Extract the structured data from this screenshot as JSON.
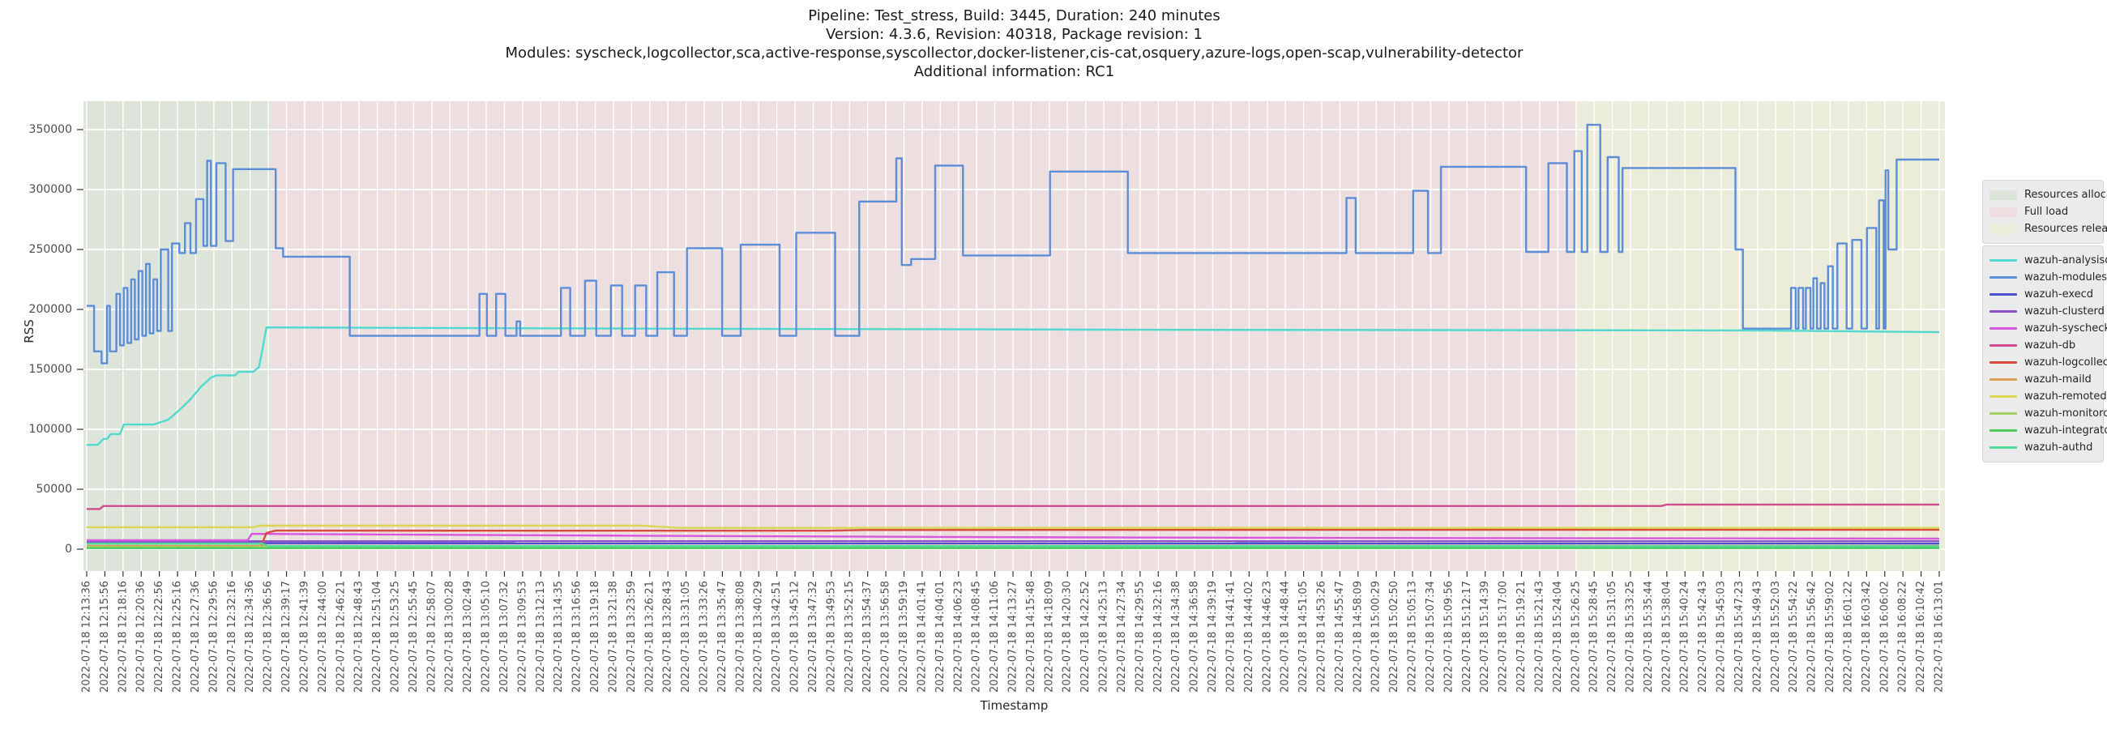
{
  "title": {
    "line1": "Pipeline: Test_stress, Build: 3445, Duration: 240 minutes",
    "line2": "Version: 4.3.6, Revision: 40318, Package revision: 1",
    "line3": "Modules: syscheck,logcollector,sca,active-response,syscollector,docker-listener,cis-cat,osquery,azure-logs,open-scap,vulnerability-detector",
    "line4": "Additional information: RC1"
  },
  "chart_data": {
    "type": "line",
    "title": "Pipeline: Test_stress, Build: 3445, Duration: 240 minutes",
    "xlabel": "Timestamp",
    "ylabel": "RSS",
    "ylim": [
      0,
      373000
    ],
    "grid": true,
    "legend_position": "right-outside",
    "y_ticks": [
      0,
      50000,
      100000,
      150000,
      200000,
      250000,
      300000,
      350000
    ],
    "x_note": "series points are [fraction-of-x-axis 0..1, RSS value]; fraction 0 = first tick, 1 = last tick",
    "x_tick_labels": [
      "2022-07-18 12:13:36",
      "2022-07-18 12:15:56",
      "2022-07-18 12:18:16",
      "2022-07-18 12:20:36",
      "2022-07-18 12:22:56",
      "2022-07-18 12:25:16",
      "2022-07-18 12:27:36",
      "2022-07-18 12:29:56",
      "2022-07-18 12:32:16",
      "2022-07-18 12:34:36",
      "2022-07-18 12:36:56",
      "2022-07-18 12:39:17",
      "2022-07-18 12:41:39",
      "2022-07-18 12:44:00",
      "2022-07-18 12:46:21",
      "2022-07-18 12:48:43",
      "2022-07-18 12:51:04",
      "2022-07-18 12:53:25",
      "2022-07-18 12:55:45",
      "2022-07-18 12:58:07",
      "2022-07-18 13:00:28",
      "2022-07-18 13:02:49",
      "2022-07-18 13:05:10",
      "2022-07-18 13:07:32",
      "2022-07-18 13:09:53",
      "2022-07-18 13:12:13",
      "2022-07-18 13:14:35",
      "2022-07-18 13:16:56",
      "2022-07-18 13:19:18",
      "2022-07-18 13:21:38",
      "2022-07-18 13:23:59",
      "2022-07-18 13:26:21",
      "2022-07-18 13:28:43",
      "2022-07-18 13:31:05",
      "2022-07-18 13:33:26",
      "2022-07-18 13:35:47",
      "2022-07-18 13:38:08",
      "2022-07-18 13:40:29",
      "2022-07-18 13:42:51",
      "2022-07-18 13:45:12",
      "2022-07-18 13:47:32",
      "2022-07-18 13:49:53",
      "2022-07-18 13:52:15",
      "2022-07-18 13:54:37",
      "2022-07-18 13:56:58",
      "2022-07-18 13:59:19",
      "2022-07-18 14:01:41",
      "2022-07-18 14:04:01",
      "2022-07-18 14:06:23",
      "2022-07-18 14:08:45",
      "2022-07-18 14:11:06",
      "2022-07-18 14:13:27",
      "2022-07-18 14:15:48",
      "2022-07-18 14:18:09",
      "2022-07-18 14:20:30",
      "2022-07-18 14:22:52",
      "2022-07-18 14:25:13",
      "2022-07-18 14:27:34",
      "2022-07-18 14:29:55",
      "2022-07-18 14:32:16",
      "2022-07-18 14:34:38",
      "2022-07-18 14:36:58",
      "2022-07-18 14:39:19",
      "2022-07-18 14:41:41",
      "2022-07-18 14:44:02",
      "2022-07-18 14:46:23",
      "2022-07-18 14:48:44",
      "2022-07-18 14:51:05",
      "2022-07-18 14:53:26",
      "2022-07-18 14:55:47",
      "2022-07-18 14:58:09",
      "2022-07-18 15:00:29",
      "2022-07-18 15:02:50",
      "2022-07-18 15:05:13",
      "2022-07-18 15:07:34",
      "2022-07-18 15:09:56",
      "2022-07-18 15:12:17",
      "2022-07-18 15:14:39",
      "2022-07-18 15:17:00",
      "2022-07-18 15:19:21",
      "2022-07-18 15:21:43",
      "2022-07-18 15:24:04",
      "2022-07-18 15:26:25",
      "2022-07-18 15:28:45",
      "2022-07-18 15:31:05",
      "2022-07-18 15:33:25",
      "2022-07-18 15:35:44",
      "2022-07-18 15:38:04",
      "2022-07-18 15:40:24",
      "2022-07-18 15:42:43",
      "2022-07-18 15:45:03",
      "2022-07-18 15:47:23",
      "2022-07-18 15:49:43",
      "2022-07-18 15:52:03",
      "2022-07-18 15:54:22",
      "2022-07-18 15:56:42",
      "2022-07-18 15:59:02",
      "2022-07-18 16:01:22",
      "2022-07-18 16:03:42",
      "2022-07-18 16:06:02",
      "2022-07-18 16:08:22",
      "2022-07-18 16:10:42",
      "2022-07-18 16:13:01"
    ],
    "regions": [
      {
        "label": "Resources allocation",
        "from": 0.0,
        "to": 0.0993,
        "color": "#dde4da"
      },
      {
        "label": "Full load",
        "from": 0.0993,
        "to": 0.804,
        "color": "#eddfdf"
      },
      {
        "label": "Resources release",
        "from": 0.804,
        "to": 1.0,
        "color": "#ebecda"
      }
    ],
    "series": [
      {
        "name": "wazuh-analysisd",
        "color": "#52d9cf",
        "mode": "linear",
        "points": [
          [
            0,
            87000
          ],
          [
            0.006,
            87000
          ],
          [
            0.009,
            92000
          ],
          [
            0.011,
            92000
          ],
          [
            0.013,
            96000
          ],
          [
            0.018,
            96000
          ],
          [
            0.02,
            104000
          ],
          [
            0.036,
            104000
          ],
          [
            0.04,
            106000
          ],
          [
            0.044,
            108000
          ],
          [
            0.05,
            116000
          ],
          [
            0.056,
            125000
          ],
          [
            0.062,
            136000
          ],
          [
            0.067,
            143000
          ],
          [
            0.07,
            145000
          ],
          [
            0.08,
            145000
          ],
          [
            0.082,
            148000
          ],
          [
            0.09,
            148000
          ],
          [
            0.093,
            152000
          ],
          [
            0.095,
            168000
          ],
          [
            0.097,
            185000
          ],
          [
            0.3,
            184000
          ],
          [
            0.6,
            183000
          ],
          [
            0.9,
            182500
          ],
          [
            1,
            181000
          ]
        ]
      },
      {
        "name": "wazuh-modulesd",
        "color": "#5b8dd9",
        "mode": "step",
        "points": [
          [
            0,
            203000
          ],
          [
            0.004,
            165000
          ],
          [
            0.008,
            155000
          ],
          [
            0.011,
            203000
          ],
          [
            0.0125,
            165000
          ],
          [
            0.016,
            213000
          ],
          [
            0.018,
            170000
          ],
          [
            0.02,
            218000
          ],
          [
            0.022,
            172000
          ],
          [
            0.024,
            225000
          ],
          [
            0.026,
            175000
          ],
          [
            0.028,
            232000
          ],
          [
            0.03,
            178000
          ],
          [
            0.032,
            238000
          ],
          [
            0.034,
            180000
          ],
          [
            0.036,
            225000
          ],
          [
            0.038,
            182000
          ],
          [
            0.04,
            250000
          ],
          [
            0.044,
            182000
          ],
          [
            0.046,
            255000
          ],
          [
            0.05,
            247000
          ],
          [
            0.053,
            272000
          ],
          [
            0.056,
            247000
          ],
          [
            0.059,
            292000
          ],
          [
            0.063,
            253000
          ],
          [
            0.065,
            324000
          ],
          [
            0.067,
            253000
          ],
          [
            0.07,
            322000
          ],
          [
            0.075,
            257000
          ],
          [
            0.079,
            317000
          ],
          [
            0.102,
            251000
          ],
          [
            0.106,
            244000
          ],
          [
            0.142,
            178000
          ],
          [
            0.212,
            213000
          ],
          [
            0.216,
            178000
          ],
          [
            0.221,
            213000
          ],
          [
            0.226,
            178000
          ],
          [
            0.232,
            190000
          ],
          [
            0.234,
            178000
          ],
          [
            0.256,
            218000
          ],
          [
            0.261,
            178000
          ],
          [
            0.269,
            224000
          ],
          [
            0.275,
            178000
          ],
          [
            0.283,
            220000
          ],
          [
            0.289,
            178000
          ],
          [
            0.296,
            220000
          ],
          [
            0.302,
            178000
          ],
          [
            0.308,
            231000
          ],
          [
            0.317,
            178000
          ],
          [
            0.324,
            251000
          ],
          [
            0.343,
            178000
          ],
          [
            0.353,
            254000
          ],
          [
            0.374,
            178000
          ],
          [
            0.383,
            264000
          ],
          [
            0.404,
            178000
          ],
          [
            0.417,
            290000
          ],
          [
            0.437,
            326000
          ],
          [
            0.44,
            237000
          ],
          [
            0.445,
            242000
          ],
          [
            0.458,
            320000
          ],
          [
            0.473,
            245000
          ],
          [
            0.52,
            315000
          ],
          [
            0.562,
            247000
          ],
          [
            0.68,
            293000
          ],
          [
            0.685,
            247000
          ],
          [
            0.716,
            299000
          ],
          [
            0.724,
            247000
          ],
          [
            0.731,
            319000
          ],
          [
            0.777,
            248000
          ],
          [
            0.789,
            322000
          ],
          [
            0.799,
            248000
          ],
          [
            0.803,
            332000
          ],
          [
            0.807,
            248000
          ],
          [
            0.81,
            354000
          ],
          [
            0.817,
            248000
          ],
          [
            0.821,
            327000
          ],
          [
            0.827,
            248000
          ],
          [
            0.829,
            318000
          ],
          [
            0.89,
            250000
          ],
          [
            0.894,
            184000
          ],
          [
            0.92,
            218000
          ],
          [
            0.9225,
            184000
          ],
          [
            0.924,
            218000
          ],
          [
            0.9265,
            184000
          ],
          [
            0.928,
            218000
          ],
          [
            0.9305,
            184000
          ],
          [
            0.932,
            226000
          ],
          [
            0.934,
            184000
          ],
          [
            0.936,
            222000
          ],
          [
            0.938,
            184000
          ],
          [
            0.94,
            236000
          ],
          [
            0.9425,
            184000
          ],
          [
            0.945,
            255000
          ],
          [
            0.95,
            184000
          ],
          [
            0.953,
            258000
          ],
          [
            0.958,
            184000
          ],
          [
            0.961,
            268000
          ],
          [
            0.966,
            184000
          ],
          [
            0.9675,
            291000
          ],
          [
            0.97,
            184000
          ],
          [
            0.971,
            316000
          ],
          [
            0.9725,
            250000
          ],
          [
            0.977,
            325000
          ],
          [
            1,
            325000
          ]
        ]
      },
      {
        "name": "wazuh-execd",
        "color": "#4d50cd",
        "mode": "linear",
        "points": [
          [
            0,
            4900
          ],
          [
            1,
            4700
          ]
        ]
      },
      {
        "name": "wazuh-clusterd",
        "color": "#8c52cc",
        "mode": "linear",
        "points": [
          [
            0,
            6600
          ],
          [
            1,
            6600
          ]
        ]
      },
      {
        "name": "wazuh-syscheckd",
        "color": "#d957dd",
        "mode": "linear",
        "points": [
          [
            0,
            7400
          ],
          [
            0.087,
            7400
          ],
          [
            0.089,
            12800
          ],
          [
            0.13,
            12400
          ],
          [
            0.3,
            11200
          ],
          [
            0.5,
            10000
          ],
          [
            0.7,
            9300
          ],
          [
            1,
            8800
          ]
        ]
      },
      {
        "name": "wazuh-db",
        "color": "#d14a8e",
        "mode": "linear",
        "points": [
          [
            0,
            33500
          ],
          [
            0.007,
            33500
          ],
          [
            0.009,
            36000
          ],
          [
            0.85,
            36000
          ],
          [
            0.853,
            37200
          ],
          [
            1,
            37200
          ]
        ]
      },
      {
        "name": "wazuh-logcollector",
        "color": "#d8493f",
        "mode": "linear",
        "points": [
          [
            0,
            2300
          ],
          [
            0.094,
            2300
          ],
          [
            0.097,
            13500
          ],
          [
            0.102,
            15500
          ],
          [
            0.4,
            15400
          ],
          [
            0.42,
            16000
          ],
          [
            0.75,
            16200
          ],
          [
            1,
            16200
          ]
        ]
      },
      {
        "name": "wazuh-maild",
        "color": "#dc9e52",
        "mode": "linear",
        "points": [
          [
            0,
            2700
          ],
          [
            1,
            2700
          ]
        ]
      },
      {
        "name": "wazuh-remoted",
        "color": "#ddd453",
        "mode": "linear",
        "points": [
          [
            0,
            18300
          ],
          [
            0.09,
            18300
          ],
          [
            0.093,
            19600
          ],
          [
            0.3,
            19600
          ],
          [
            0.32,
            17800
          ],
          [
            1,
            17800
          ]
        ]
      },
      {
        "name": "wazuh-monitord",
        "color": "#a3d162",
        "mode": "linear",
        "points": [
          [
            0,
            1800
          ],
          [
            1,
            1800
          ]
        ]
      },
      {
        "name": "wazuh-integratord",
        "color": "#4ec95e",
        "mode": "linear",
        "points": [
          [
            0,
            900
          ],
          [
            1,
            900
          ]
        ]
      },
      {
        "name": "wazuh-authd",
        "color": "#52d998",
        "mode": "linear",
        "points": [
          [
            0,
            4600
          ],
          [
            0.095,
            4600
          ],
          [
            0.098,
            2600
          ],
          [
            1,
            2500
          ]
        ]
      }
    ]
  },
  "axes": {
    "ylabel": "RSS",
    "xlabel": "Timestamp"
  },
  "colors": {
    "figure_bg": "#ffffff",
    "grid": "#ffffff",
    "tick_text": "#4d4d4d",
    "legend_bg": "#ebebeb"
  }
}
